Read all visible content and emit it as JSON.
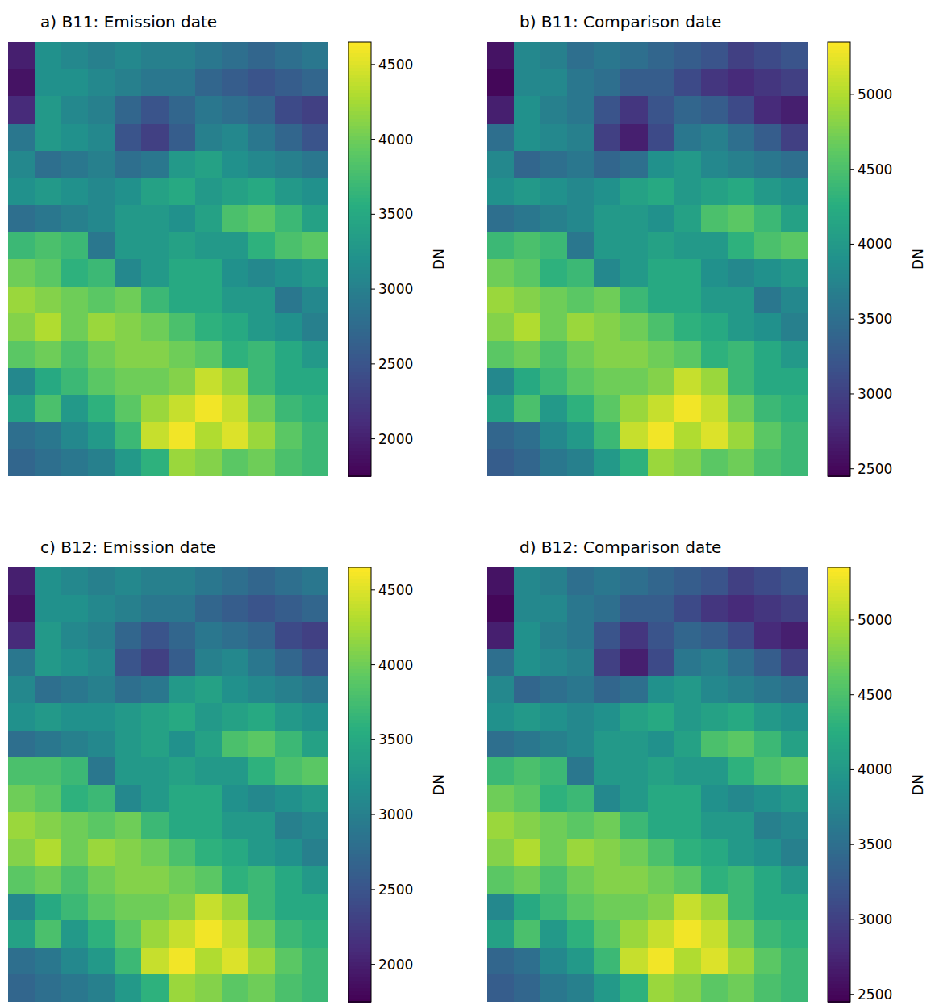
{
  "chart_data": [
    {
      "type": "heatmap",
      "title": "a) B11: Emission date",
      "color": "viridis",
      "tick_labels": false,
      "colorbar_label": "DN",
      "color_range": [
        1750,
        4650
      ],
      "color_ticks": [
        2000,
        2500,
        3000,
        3500,
        4000,
        4500
      ],
      "cells": [
        [
          2000,
          3200,
          3100,
          3000,
          3100,
          3000,
          3000,
          2900,
          2800,
          2700,
          2800,
          2900
        ],
        [
          1900,
          3200,
          3200,
          3100,
          3000,
          2900,
          2900,
          2700,
          2600,
          2500,
          2600,
          2700
        ],
        [
          2100,
          3300,
          3100,
          3000,
          2700,
          2500,
          2700,
          2900,
          2800,
          2700,
          2400,
          2300
        ],
        [
          2900,
          3300,
          3200,
          3100,
          2500,
          2300,
          2600,
          3000,
          3100,
          2900,
          2700,
          2500
        ],
        [
          3100,
          2800,
          2900,
          3000,
          2800,
          2900,
          3300,
          3400,
          3200,
          3100,
          3000,
          2900
        ],
        [
          3200,
          3300,
          3200,
          3100,
          3200,
          3400,
          3500,
          3300,
          3400,
          3500,
          3300,
          3200
        ],
        [
          2800,
          2900,
          3000,
          3100,
          3300,
          3300,
          3200,
          3400,
          3800,
          3900,
          3700,
          3400
        ],
        [
          3700,
          3800,
          3700,
          2900,
          3300,
          3300,
          3400,
          3300,
          3300,
          3600,
          3800,
          3900
        ],
        [
          4000,
          3900,
          3600,
          3700,
          3100,
          3300,
          3500,
          3500,
          3200,
          3100,
          3200,
          3300
        ],
        [
          4200,
          4100,
          4000,
          3900,
          4000,
          3700,
          3500,
          3500,
          3300,
          3300,
          2900,
          3100
        ],
        [
          4100,
          4300,
          4000,
          4200,
          4100,
          4000,
          3800,
          3600,
          3500,
          3300,
          3200,
          3000
        ],
        [
          3900,
          4000,
          3800,
          4000,
          4100,
          4100,
          4000,
          3900,
          3600,
          3700,
          3500,
          3300
        ],
        [
          3100,
          3500,
          3700,
          3900,
          4000,
          4000,
          4100,
          4400,
          4200,
          3700,
          3500,
          3500
        ],
        [
          3400,
          3800,
          3300,
          3600,
          3900,
          4200,
          4400,
          4600,
          4400,
          4000,
          3700,
          3600
        ],
        [
          2800,
          2900,
          3100,
          3300,
          3700,
          4400,
          4600,
          4300,
          4500,
          4200,
          3900,
          3700
        ],
        [
          2700,
          2800,
          2900,
          3000,
          3300,
          3600,
          4200,
          4100,
          3900,
          4000,
          3800,
          3700
        ]
      ]
    },
    {
      "type": "heatmap",
      "title": "b) B11: Comparison date",
      "color": "viridis",
      "tick_labels": false,
      "colorbar_label": "DN",
      "color_range": [
        2450,
        5350
      ],
      "color_ticks": [
        2500,
        3000,
        3500,
        4000,
        4500,
        5000
      ],
      "cells": [
        [
          2600,
          3800,
          3700,
          3500,
          3600,
          3500,
          3400,
          3300,
          3200,
          3000,
          3100,
          3200
        ],
        [
          2500,
          3800,
          3800,
          3600,
          3500,
          3300,
          3300,
          3100,
          2900,
          2800,
          2900,
          3000
        ],
        [
          2700,
          3900,
          3700,
          3600,
          3200,
          2900,
          3200,
          3400,
          3300,
          3100,
          2800,
          2700
        ],
        [
          3500,
          3900,
          3800,
          3700,
          3000,
          2700,
          3100,
          3600,
          3700,
          3500,
          3300,
          3000
        ],
        [
          3800,
          3400,
          3500,
          3600,
          3400,
          3500,
          3900,
          4000,
          3800,
          3700,
          3600,
          3500
        ],
        [
          3900,
          4000,
          3900,
          3800,
          3900,
          4100,
          4200,
          4000,
          4100,
          4200,
          4000,
          3900
        ],
        [
          3500,
          3600,
          3700,
          3800,
          4000,
          4000,
          3900,
          4100,
          4500,
          4600,
          4400,
          4100
        ],
        [
          4400,
          4500,
          4400,
          3600,
          4000,
          4000,
          4100,
          4000,
          4000,
          4300,
          4500,
          4600
        ],
        [
          4700,
          4600,
          4300,
          4400,
          3800,
          4000,
          4200,
          4200,
          3900,
          3800,
          3900,
          4000
        ],
        [
          4900,
          4800,
          4700,
          4600,
          4700,
          4400,
          4200,
          4200,
          4000,
          4000,
          3600,
          3800
        ],
        [
          4800,
          5000,
          4700,
          4900,
          4800,
          4700,
          4500,
          4300,
          4200,
          4000,
          3900,
          3700
        ],
        [
          4600,
          4700,
          4500,
          4700,
          4800,
          4800,
          4700,
          4600,
          4300,
          4400,
          4200,
          4000
        ],
        [
          3800,
          4200,
          4400,
          4600,
          4700,
          4700,
          4800,
          5100,
          4900,
          4400,
          4200,
          4200
        ],
        [
          4100,
          4500,
          4000,
          4300,
          4600,
          4900,
          5100,
          5300,
          5100,
          4700,
          4400,
          4300
        ],
        [
          3400,
          3500,
          3800,
          4000,
          4400,
          5100,
          5300,
          5000,
          5200,
          4900,
          4600,
          4400
        ],
        [
          3300,
          3400,
          3600,
          3700,
          4000,
          4300,
          4900,
          4800,
          4600,
          4700,
          4500,
          4400
        ]
      ]
    },
    {
      "type": "heatmap",
      "title": "c) B12: Emission date",
      "color": "viridis",
      "tick_labels": false,
      "colorbar_label": "DN",
      "color_range": [
        1750,
        4650
      ],
      "color_ticks": [
        2000,
        2500,
        3000,
        3500,
        4000,
        4500
      ],
      "cells": [
        [
          2000,
          3200,
          3100,
          3000,
          3100,
          3000,
          3000,
          2900,
          2800,
          2700,
          2800,
          2900
        ],
        [
          1900,
          3200,
          3200,
          3100,
          3000,
          2900,
          2900,
          2700,
          2600,
          2500,
          2600,
          2700
        ],
        [
          2100,
          3300,
          3100,
          3000,
          2700,
          2500,
          2700,
          2900,
          2800,
          2700,
          2400,
          2300
        ],
        [
          2900,
          3300,
          3200,
          3100,
          2500,
          2300,
          2600,
          3000,
          3100,
          2900,
          2700,
          2500
        ],
        [
          3100,
          2800,
          2900,
          3000,
          2800,
          2900,
          3300,
          3400,
          3200,
          3100,
          3000,
          2900
        ],
        [
          3200,
          3300,
          3200,
          3200,
          3300,
          3400,
          3500,
          3300,
          3400,
          3500,
          3300,
          3200
        ],
        [
          2800,
          2900,
          3000,
          3100,
          3300,
          3400,
          3200,
          3400,
          3800,
          3900,
          3700,
          3400
        ],
        [
          3800,
          3800,
          3700,
          2900,
          3300,
          3300,
          3400,
          3300,
          3300,
          3600,
          3800,
          3900
        ],
        [
          4000,
          3900,
          3600,
          3700,
          3100,
          3300,
          3500,
          3500,
          3200,
          3100,
          3200,
          3300
        ],
        [
          4200,
          4100,
          4000,
          3900,
          4000,
          3700,
          3500,
          3500,
          3300,
          3300,
          3000,
          3100
        ],
        [
          4100,
          4300,
          4000,
          4200,
          4100,
          4000,
          3800,
          3600,
          3500,
          3300,
          3200,
          3000
        ],
        [
          3900,
          4000,
          3800,
          4000,
          4100,
          4100,
          4000,
          3900,
          3600,
          3700,
          3500,
          3300
        ],
        [
          3100,
          3500,
          3700,
          3900,
          4000,
          4000,
          4100,
          4400,
          4200,
          3700,
          3500,
          3500
        ],
        [
          3400,
          3800,
          3300,
          3600,
          3900,
          4200,
          4400,
          4600,
          4400,
          4000,
          3700,
          3600
        ],
        [
          2800,
          2900,
          3100,
          3300,
          3700,
          4400,
          4600,
          4300,
          4500,
          4200,
          3900,
          3700
        ],
        [
          2700,
          2800,
          2900,
          3000,
          3300,
          3600,
          4200,
          4100,
          3900,
          4000,
          3800,
          3700
        ]
      ]
    },
    {
      "type": "heatmap",
      "title": "d) B12: Comparison date",
      "color": "viridis",
      "tick_labels": false,
      "colorbar_label": "DN",
      "color_range": [
        2450,
        5350
      ],
      "color_ticks": [
        2500,
        3000,
        3500,
        4000,
        4500,
        5000
      ],
      "cells": [
        [
          2600,
          3800,
          3700,
          3500,
          3600,
          3500,
          3400,
          3300,
          3200,
          3000,
          3100,
          3200
        ],
        [
          2500,
          3800,
          3800,
          3600,
          3500,
          3300,
          3300,
          3100,
          2900,
          2800,
          2900,
          3000
        ],
        [
          2700,
          3900,
          3700,
          3600,
          3200,
          2900,
          3200,
          3400,
          3300,
          3100,
          2800,
          2700
        ],
        [
          3500,
          3900,
          3800,
          3700,
          3000,
          2700,
          3100,
          3600,
          3700,
          3500,
          3300,
          3000
        ],
        [
          3800,
          3400,
          3500,
          3600,
          3400,
          3500,
          3900,
          4000,
          3800,
          3700,
          3600,
          3500
        ],
        [
          3900,
          4000,
          3900,
          3800,
          3900,
          4100,
          4200,
          4000,
          4100,
          4200,
          4000,
          3900
        ],
        [
          3500,
          3600,
          3700,
          3800,
          4000,
          4000,
          3900,
          4100,
          4500,
          4600,
          4400,
          4100
        ],
        [
          4400,
          4500,
          4400,
          3600,
          4000,
          4000,
          4100,
          4000,
          4000,
          4300,
          4500,
          4600
        ],
        [
          4700,
          4600,
          4300,
          4400,
          3800,
          4000,
          4200,
          4200,
          3900,
          3800,
          3900,
          4000
        ],
        [
          4900,
          4800,
          4700,
          4600,
          4700,
          4400,
          4200,
          4200,
          4000,
          4000,
          3700,
          3800
        ],
        [
          4800,
          5000,
          4700,
          4900,
          4800,
          4700,
          4500,
          4300,
          4200,
          4000,
          3900,
          3700
        ],
        [
          4600,
          4700,
          4500,
          4700,
          4800,
          4800,
          4700,
          4600,
          4300,
          4400,
          4200,
          4000
        ],
        [
          3800,
          4200,
          4400,
          4600,
          4700,
          4700,
          4800,
          5100,
          4900,
          4400,
          4200,
          4200
        ],
        [
          4100,
          4500,
          4000,
          4300,
          4600,
          4900,
          5100,
          5300,
          5100,
          4700,
          4400,
          4300
        ],
        [
          3400,
          3500,
          3800,
          4000,
          4400,
          5100,
          5300,
          5000,
          5200,
          4900,
          4600,
          4400
        ],
        [
          3300,
          3400,
          3600,
          3700,
          4000,
          4300,
          4900,
          4800,
          4600,
          4700,
          4500,
          4400
        ]
      ]
    }
  ]
}
